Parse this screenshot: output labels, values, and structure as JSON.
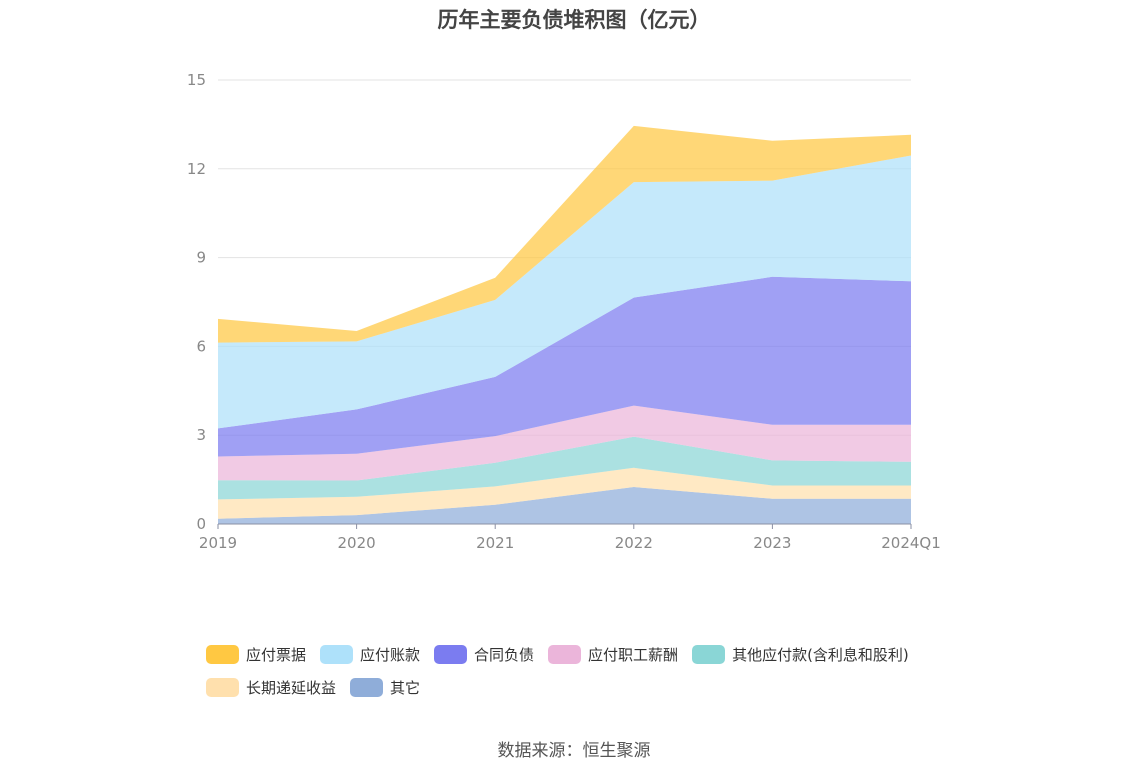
{
  "title": "历年主要负债堆积图（亿元）",
  "source": "数据来源：恒生聚源",
  "chart_data": {
    "type": "area",
    "stacked": true,
    "title": "历年主要负债堆积图（亿元）",
    "categories": [
      "2019",
      "2020",
      "2021",
      "2022",
      "2023",
      "2024Q1"
    ],
    "ylim": [
      0,
      15
    ],
    "yticks": [
      0,
      3,
      6,
      9,
      12,
      15
    ],
    "grid": true,
    "legend_position": "bottom",
    "series": [
      {
        "name": "其它",
        "color": "#8fadd9",
        "values": [
          0.18,
          0.3,
          0.65,
          1.25,
          0.85,
          0.85
        ]
      },
      {
        "name": "长期递延收益",
        "color": "#ffe0ad",
        "values": [
          0.65,
          0.62,
          0.62,
          0.65,
          0.45,
          0.45
        ]
      },
      {
        "name": "其他应付款(含利息和股利)",
        "color": "#8ad6d6",
        "values": [
          0.65,
          0.55,
          0.8,
          1.05,
          0.85,
          0.8
        ]
      },
      {
        "name": "应付职工薪酬",
        "color": "#ebb5da",
        "values": [
          0.8,
          0.9,
          0.9,
          1.05,
          1.2,
          1.25
        ]
      },
      {
        "name": "合同负债",
        "color": "#7b7cf0",
        "values": [
          0.95,
          1.5,
          2.0,
          3.65,
          5.0,
          4.85
        ]
      },
      {
        "name": "应付账款",
        "color": "#aee1fa",
        "values": [
          2.9,
          2.3,
          2.6,
          3.9,
          3.25,
          4.25
        ]
      },
      {
        "name": "应付票据",
        "color": "#ffc842",
        "values": [
          0.8,
          0.35,
          0.75,
          1.9,
          1.35,
          0.7
        ]
      }
    ]
  },
  "legend": [
    [
      {
        "name": "应付票据",
        "color": "#ffc842"
      },
      {
        "name": "应付账款",
        "color": "#aee1fa"
      },
      {
        "name": "合同负债",
        "color": "#7b7cf0"
      },
      {
        "name": "应付职工薪酬",
        "color": "#ebb5da"
      },
      {
        "name": "其他应付款(含利息和股利)",
        "color": "#8ad6d6"
      }
    ],
    [
      {
        "name": "长期递延收益",
        "color": "#ffe0ad"
      },
      {
        "name": "其它",
        "color": "#8fadd9"
      }
    ]
  ]
}
